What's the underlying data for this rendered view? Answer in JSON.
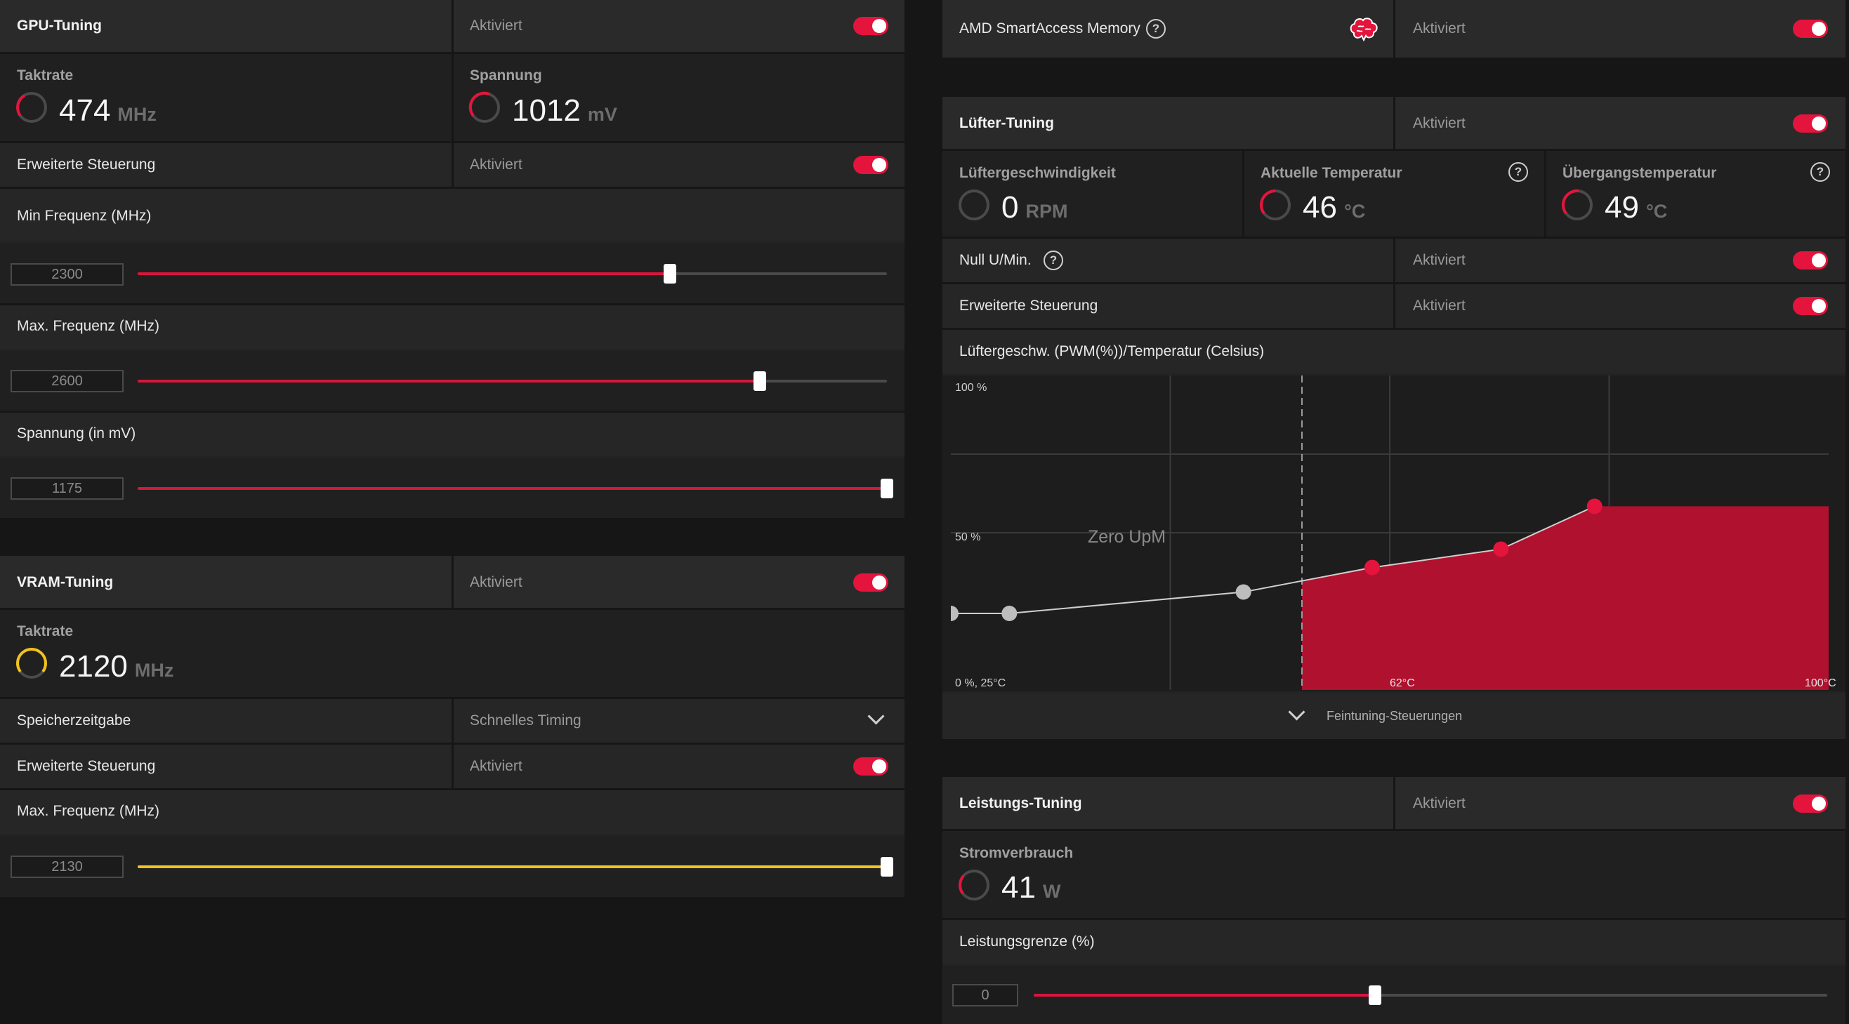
{
  "gpu_tuning": {
    "title": "GPU-Tuning",
    "status": "Aktiviert",
    "clock": {
      "label": "Taktrate",
      "value": "474",
      "unit": "MHz"
    },
    "voltage": {
      "label": "Spannung",
      "value": "1012",
      "unit": "mV"
    },
    "advanced": {
      "label": "Erweiterte Steuerung",
      "status": "Aktiviert"
    },
    "min_freq": {
      "label": "Min Frequenz (MHz)",
      "value": "2300",
      "percent": 71
    },
    "max_freq": {
      "label": "Max. Frequenz (MHz)",
      "value": "2600",
      "percent": 83
    },
    "voltage_slider": {
      "label": "Spannung (in mV)",
      "value": "1175",
      "percent": 100
    }
  },
  "vram_tuning": {
    "title": "VRAM-Tuning",
    "status": "Aktiviert",
    "clock": {
      "label": "Taktrate",
      "value": "2120",
      "unit": "MHz"
    },
    "timing": {
      "label": "Speicherzeitgabe",
      "value": "Schnelles Timing"
    },
    "advanced": {
      "label": "Erweiterte Steuerung",
      "status": "Aktiviert"
    },
    "max_freq": {
      "label": "Max. Frequenz (MHz)",
      "value": "2130",
      "percent": 100
    }
  },
  "smart_access": {
    "label": "AMD SmartAccess Memory",
    "status": "Aktiviert"
  },
  "fan_tuning": {
    "title": "Lüfter-Tuning",
    "status": "Aktiviert",
    "fan_speed": {
      "label": "Lüftergeschwindigkeit",
      "value": "0",
      "unit": "RPM"
    },
    "current_temp": {
      "label": "Aktuelle Temperatur",
      "value": "46",
      "unit": "°C"
    },
    "junction_temp": {
      "label": "Übergangstemperatur",
      "value": "49",
      "unit": "°C"
    },
    "zero_rpm": {
      "label": "Null U/Min.",
      "status": "Aktiviert"
    },
    "advanced": {
      "label": "Erweiterte Steuerung",
      "status": "Aktiviert"
    },
    "curve_title": "Lüftergeschw. (PWM(%))/Temperatur (Celsius)",
    "fine_tuning": "Feintuning-Steuerungen"
  },
  "power_tuning": {
    "title": "Leistungs-Tuning",
    "status": "Aktiviert",
    "power": {
      "label": "Stromverbrauch",
      "value": "41",
      "unit": "W"
    },
    "limit": {
      "label": "Leistungsgrenze (%)",
      "value": "0",
      "percent": 43
    }
  },
  "chart_data": {
    "type": "line",
    "title": "Lüftergeschw. (PWM(%))/Temperatur (Celsius)",
    "xlabel": "",
    "ylabel": "",
    "xlim": [
      25,
      100
    ],
    "ylim": [
      0,
      100
    ],
    "y_tick_labels": [
      "100 %",
      "50 %",
      "0 %, 25°C"
    ],
    "x_tick_labels": [
      "62°C",
      "100°C"
    ],
    "zero_rpm_label": "Zero UpM",
    "zero_rpm_threshold": 55,
    "x": [
      25,
      30,
      50,
      61,
      72,
      80
    ],
    "y": [
      25,
      25,
      32,
      40,
      46,
      60
    ],
    "point_colors": [
      "#bdbdbd",
      "#bdbdbd",
      "#bdbdbd",
      "#e4143c",
      "#e4143c",
      "#e4143c"
    ],
    "fill_from_x": 55,
    "extend_to_x": 100,
    "grid": true
  }
}
